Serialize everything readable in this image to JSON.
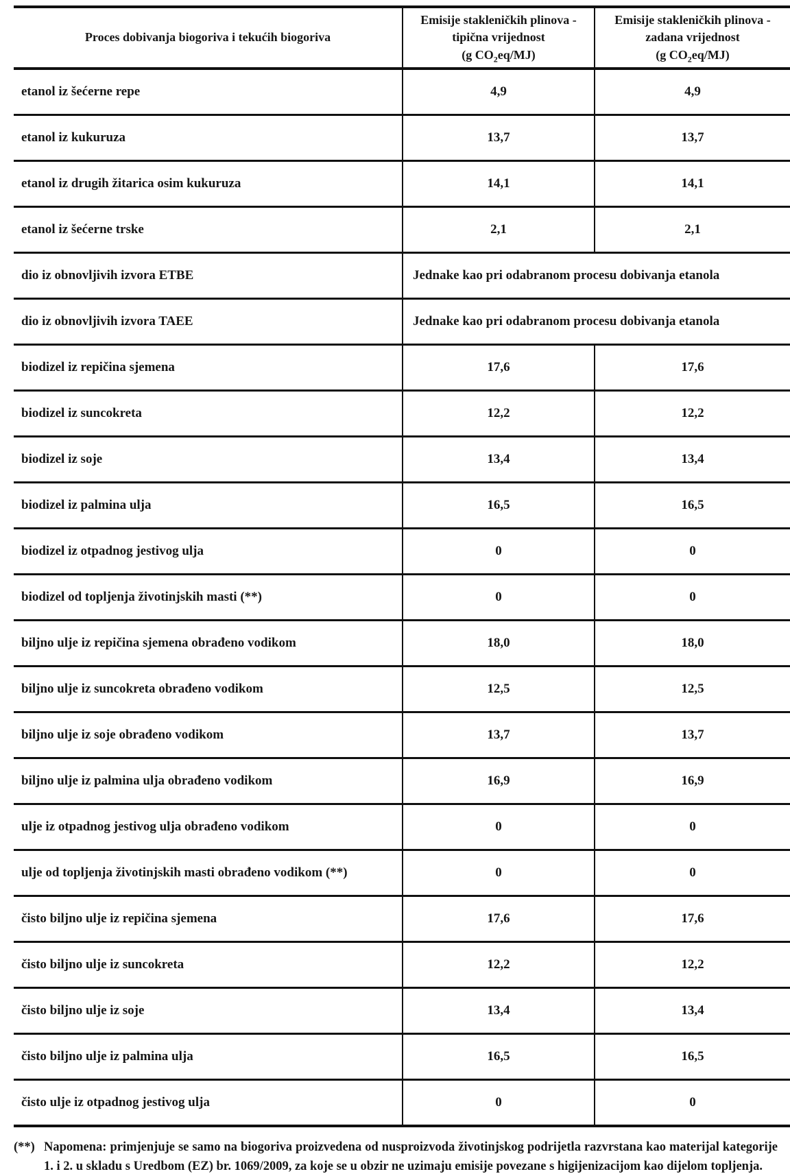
{
  "table": {
    "header": {
      "process_col": "Proces dobivanja biogoriva i tekućih biogoriva",
      "typical_line1": "Emisije stakleničkih plinova -",
      "typical_line2": "tipična vrijednost",
      "default_line1": "Emisije stakleničkih plinova -",
      "default_line2": "zadana vrijednost",
      "unit_prefix": "(g CO",
      "unit_sub": "2",
      "unit_suffix": "eq/MJ)"
    },
    "rows": [
      {
        "label": "etanol iz šećerne repe",
        "typical": "4,9",
        "default": "4,9"
      },
      {
        "label": "etanol iz kukuruza",
        "typical": "13,7",
        "default": "13,7"
      },
      {
        "label": "etanol iz drugih žitarica osim kukuruza",
        "typical": "14,1",
        "default": "14,1"
      },
      {
        "label": "etanol iz šećerne trske",
        "typical": "2,1",
        "default": "2,1"
      },
      {
        "label": "dio iz obnovljivih izvora ETBE",
        "span_text": "Jednake kao pri odabranom procesu dobivanja etanola"
      },
      {
        "label": "dio iz obnovljivih izvora TAEE",
        "span_text": "Jednake kao pri odabranom procesu dobivanja etanola"
      },
      {
        "label": "biodizel iz repičina sjemena",
        "typical": "17,6",
        "default": "17,6"
      },
      {
        "label": "biodizel iz suncokreta",
        "typical": "12,2",
        "default": "12,2"
      },
      {
        "label": "biodizel iz soje",
        "typical": "13,4",
        "default": "13,4"
      },
      {
        "label": "biodizel iz palmina ulja",
        "typical": "16,5",
        "default": "16,5"
      },
      {
        "label": "biodizel iz otpadnog jestivog ulja",
        "typical": "0",
        "default": "0"
      },
      {
        "label": "biodizel od topljenja životinjskih masti (**)",
        "typical": "0",
        "default": "0"
      },
      {
        "label": "biljno ulje iz repičina sjemena obrađeno vodikom",
        "typical": "18,0",
        "default": "18,0"
      },
      {
        "label": "biljno ulje iz suncokreta obrađeno vodikom",
        "typical": "12,5",
        "default": "12,5"
      },
      {
        "label": "biljno ulje iz soje obrađeno vodikom",
        "typical": "13,7",
        "default": "13,7"
      },
      {
        "label": "biljno ulje iz palmina ulja obrađeno vodikom",
        "typical": "16,9",
        "default": "16,9"
      },
      {
        "label": "ulje iz otpadnog jestivog ulja obrađeno vodikom",
        "typical": "0",
        "default": "0"
      },
      {
        "label": "ulje od topljenja životinjskih masti obrađeno vodikom (**)",
        "typical": "0",
        "default": "0"
      },
      {
        "label": "čisto biljno ulje iz repičina sjemena",
        "typical": "17,6",
        "default": "17,6"
      },
      {
        "label": "čisto biljno ulje iz suncokreta",
        "typical": "12,2",
        "default": "12,2"
      },
      {
        "label": "čisto biljno ulje iz soje",
        "typical": "13,4",
        "default": "13,4"
      },
      {
        "label": "čisto biljno ulje iz palmina ulja",
        "typical": "16,5",
        "default": "16,5"
      },
      {
        "label": "čisto ulje iz otpadnog jestivog ulja",
        "typical": "0",
        "default": "0"
      }
    ]
  },
  "footnote": {
    "marker": "(**)",
    "text": "Napomena: primjenjuje se samo na biogoriva proizvedena od nusproizvoda životinjskog podrijetla razvrstana kao materijal kategorije 1. i 2. u skladu s Uredbom (EZ) br. 1069/2009, za koje se u obzir ne uzimaju emisije povezane s higijenizacijom kao dijelom topljenja."
  },
  "colors": {
    "text": "#161616",
    "border": "#101010",
    "background": "#ffffff"
  }
}
